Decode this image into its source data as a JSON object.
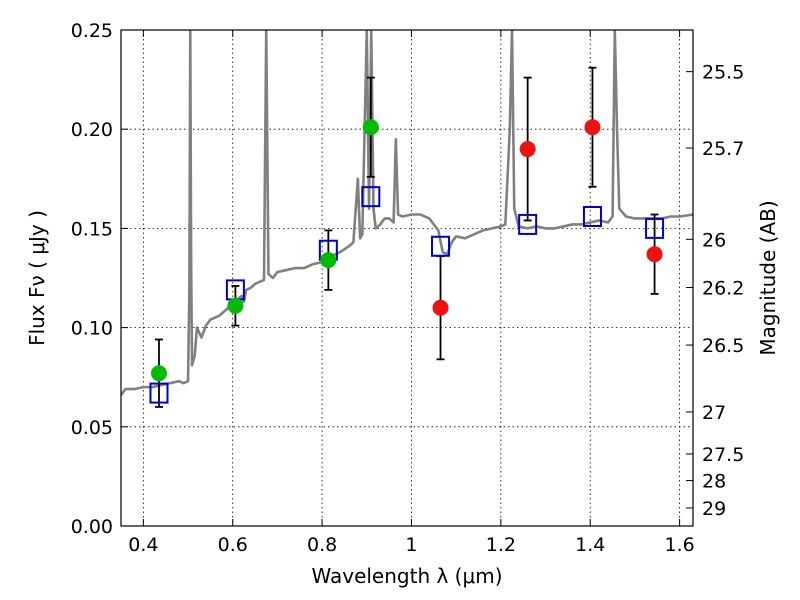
{
  "chart_data": {
    "type": "scatter",
    "xlabel": "Wavelength  λ (μm)",
    "ylabel": "Flux  Fν  ( μJy )",
    "y2label": "Magnitude (AB)",
    "xlim": [
      0.35,
      1.63
    ],
    "ylim": [
      0.0,
      0.25
    ],
    "grid": true,
    "xticks": [
      0.4,
      0.6,
      0.8,
      1.0,
      1.2,
      1.4,
      1.6
    ],
    "xtick_labels": [
      "0.4",
      "0.6",
      "0.8",
      "1",
      "1.2",
      "1.4",
      "1.6"
    ],
    "yticks": [
      0.0,
      0.05,
      0.1,
      0.15,
      0.2,
      0.25
    ],
    "ytick_labels": [
      "0.00",
      "0.05",
      "0.10",
      "0.15",
      "0.20",
      "0.25"
    ],
    "y2ticks": [
      {
        "label": "25.5",
        "flux": 0.229
      },
      {
        "label": "25.7",
        "flux": 0.1905
      },
      {
        "label": "26",
        "flux": 0.1445
      },
      {
        "label": "26.2",
        "flux": 0.1202
      },
      {
        "label": "26.5",
        "flux": 0.0912
      },
      {
        "label": "27",
        "flux": 0.0575
      },
      {
        "label": "27.5",
        "flux": 0.0363
      },
      {
        "label": "28",
        "flux": 0.0229
      },
      {
        "label": "29",
        "flux": 0.0091
      }
    ],
    "colors": {
      "spectrum": "#808080",
      "green": "#00bb00",
      "red": "#ee1111",
      "model": "#0000cc",
      "errorbar": "#000000"
    },
    "series": [
      {
        "kind": "line",
        "points": [
          [
            0.35,
            0.066
          ],
          [
            0.36,
            0.069
          ],
          [
            0.38,
            0.069
          ],
          [
            0.4,
            0.07
          ],
          [
            0.42,
            0.07
          ],
          [
            0.44,
            0.071
          ],
          [
            0.46,
            0.072
          ],
          [
            0.48,
            0.073
          ],
          [
            0.49,
            0.072
          ],
          [
            0.5,
            0.073
          ],
          [
            0.503,
            0.12
          ],
          [
            0.505,
            0.25
          ],
          [
            0.507,
            0.13
          ],
          [
            0.509,
            0.081
          ],
          [
            0.515,
            0.086
          ],
          [
            0.52,
            0.1
          ],
          [
            0.53,
            0.095
          ],
          [
            0.54,
            0.101
          ],
          [
            0.55,
            0.104
          ],
          [
            0.56,
            0.105
          ],
          [
            0.57,
            0.106
          ],
          [
            0.58,
            0.108
          ],
          [
            0.59,
            0.11
          ],
          [
            0.6,
            0.113
          ],
          [
            0.61,
            0.114
          ],
          [
            0.62,
            0.116
          ],
          [
            0.625,
            0.113
          ],
          [
            0.63,
            0.119
          ],
          [
            0.64,
            0.12
          ],
          [
            0.65,
            0.122
          ],
          [
            0.66,
            0.123
          ],
          [
            0.67,
            0.124
          ],
          [
            0.675,
            0.25
          ],
          [
            0.68,
            0.127
          ],
          [
            0.69,
            0.125
          ],
          [
            0.7,
            0.128
          ],
          [
            0.72,
            0.129
          ],
          [
            0.74,
            0.13
          ],
          [
            0.76,
            0.13
          ],
          [
            0.78,
            0.132
          ],
          [
            0.8,
            0.133
          ],
          [
            0.82,
            0.136
          ],
          [
            0.84,
            0.138
          ],
          [
            0.86,
            0.141
          ],
          [
            0.87,
            0.143
          ],
          [
            0.88,
            0.175
          ],
          [
            0.885,
            0.145
          ],
          [
            0.89,
            0.147
          ],
          [
            0.9,
            0.25
          ],
          [
            0.905,
            0.16
          ],
          [
            0.91,
            0.25
          ],
          [
            0.915,
            0.16
          ],
          [
            0.92,
            0.15
          ],
          [
            0.93,
            0.152
          ],
          [
            0.94,
            0.155
          ],
          [
            0.95,
            0.155
          ],
          [
            0.96,
            0.153
          ],
          [
            0.965,
            0.195
          ],
          [
            0.97,
            0.157
          ],
          [
            0.98,
            0.156
          ],
          [
            1.0,
            0.157
          ],
          [
            1.02,
            0.157
          ],
          [
            1.04,
            0.155
          ],
          [
            1.06,
            0.149
          ],
          [
            1.07,
            0.138
          ],
          [
            1.08,
            0.137
          ],
          [
            1.09,
            0.143
          ],
          [
            1.1,
            0.146
          ],
          [
            1.12,
            0.145
          ],
          [
            1.14,
            0.147
          ],
          [
            1.16,
            0.149
          ],
          [
            1.18,
            0.15
          ],
          [
            1.2,
            0.151
          ],
          [
            1.21,
            0.152
          ],
          [
            1.22,
            0.2
          ],
          [
            1.225,
            0.25
          ],
          [
            1.23,
            0.16
          ],
          [
            1.24,
            0.151
          ],
          [
            1.26,
            0.15
          ],
          [
            1.28,
            0.151
          ],
          [
            1.3,
            0.15
          ],
          [
            1.32,
            0.15
          ],
          [
            1.34,
            0.151
          ],
          [
            1.36,
            0.152
          ],
          [
            1.38,
            0.152
          ],
          [
            1.4,
            0.153
          ],
          [
            1.42,
            0.154
          ],
          [
            1.44,
            0.153
          ],
          [
            1.45,
            0.156
          ],
          [
            1.455,
            0.25
          ],
          [
            1.46,
            0.2
          ],
          [
            1.465,
            0.16
          ],
          [
            1.48,
            0.156
          ],
          [
            1.5,
            0.155
          ],
          [
            1.52,
            0.155
          ],
          [
            1.54,
            0.155
          ],
          [
            1.56,
            0.155
          ],
          [
            1.58,
            0.156
          ],
          [
            1.6,
            0.156
          ],
          [
            1.63,
            0.157
          ]
        ]
      },
      {
        "kind": "points",
        "marker": "circle",
        "points": [
          {
            "x": 0.435,
            "y": 0.077,
            "err": 0.017,
            "color": "green"
          },
          {
            "x": 0.606,
            "y": 0.111,
            "err": 0.01,
            "color": "green"
          },
          {
            "x": 0.814,
            "y": 0.134,
            "err": 0.015,
            "color": "green"
          },
          {
            "x": 0.909,
            "y": 0.201,
            "err": 0.025,
            "color": "green"
          },
          {
            "x": 1.065,
            "y": 0.11,
            "err": 0.026,
            "color": "red"
          },
          {
            "x": 1.26,
            "y": 0.19,
            "err": 0.036,
            "color": "red"
          },
          {
            "x": 1.405,
            "y": 0.201,
            "err": 0.03,
            "color": "red"
          },
          {
            "x": 1.544,
            "y": 0.137,
            "err": 0.02,
            "color": "red"
          }
        ]
      },
      {
        "kind": "points",
        "marker": "square",
        "points": [
          {
            "x": 0.435,
            "y": 0.067
          },
          {
            "x": 0.606,
            "y": 0.119
          },
          {
            "x": 0.814,
            "y": 0.139
          },
          {
            "x": 0.909,
            "y": 0.166
          },
          {
            "x": 1.065,
            "y": 0.141
          },
          {
            "x": 1.26,
            "y": 0.152
          },
          {
            "x": 1.405,
            "y": 0.156
          },
          {
            "x": 1.544,
            "y": 0.15
          }
        ]
      }
    ]
  }
}
